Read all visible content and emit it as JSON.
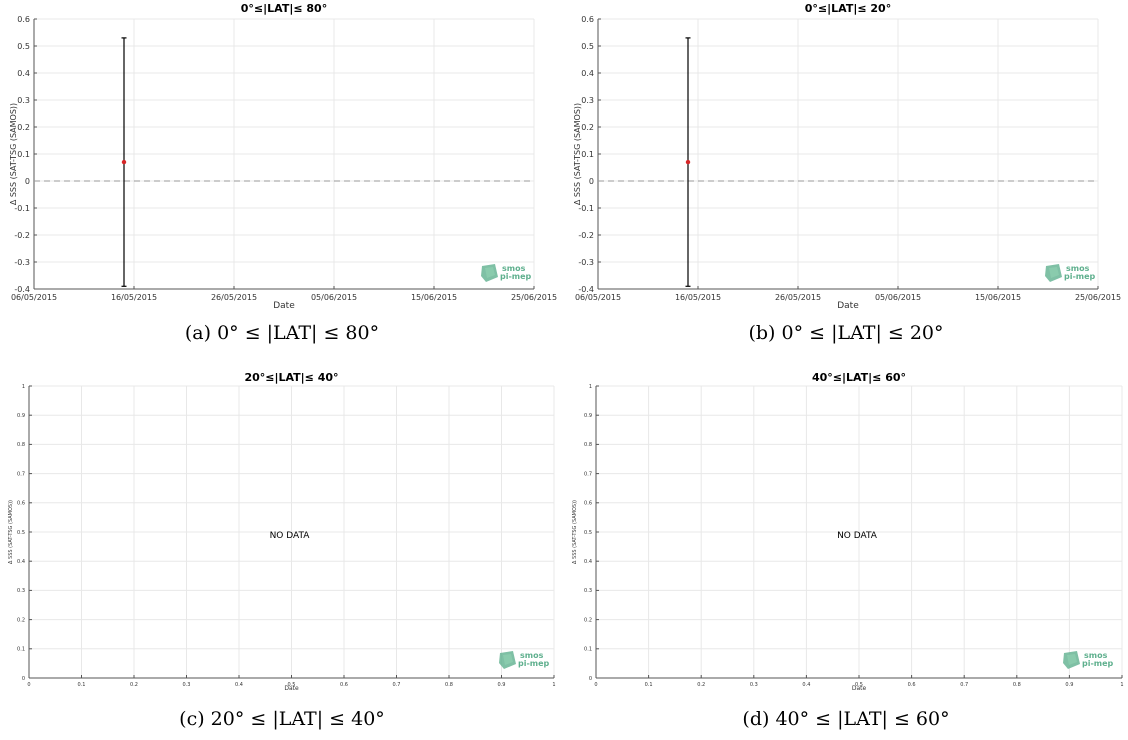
{
  "chart_data": [
    {
      "type": "scatter",
      "title": "0°≤|LAT|≤ 80°",
      "xlabel": "Date",
      "ylabel": "Δ SSS (SAT-TSG (SAMOS))",
      "xlim": [
        "06/05/2015",
        "25/06/2015"
      ],
      "xticks": [
        "06/05/2015",
        "16/05/2015",
        "26/05/2015",
        "05/06/2015",
        "15/06/2015",
        "25/06/2015"
      ],
      "ylim": [
        -0.4,
        0.6
      ],
      "yticks": [
        "-0.4",
        "-0.3",
        "-0.2",
        "-0.1",
        "0",
        "0.1",
        "0.2",
        "0.3",
        "0.4",
        "0.5",
        "0.6"
      ],
      "reference_line_y": 0,
      "points": [
        {
          "x": "15/05/2015",
          "y": 0.07,
          "err_low": -0.39,
          "err_high": 0.53
        }
      ],
      "grid": true,
      "no_data_text": "",
      "caption": "(a) 0° ≤ |LAT| ≤ 80°"
    },
    {
      "type": "scatter",
      "title": "0°≤|LAT|≤ 20°",
      "xlabel": "Date",
      "ylabel": "Δ SSS (SAT-TSG (SAMOS))",
      "xlim": [
        "06/05/2015",
        "25/06/2015"
      ],
      "xticks": [
        "06/05/2015",
        "16/05/2015",
        "26/05/2015",
        "05/06/2015",
        "15/06/2015",
        "25/06/2015"
      ],
      "ylim": [
        -0.4,
        0.6
      ],
      "yticks": [
        "-0.4",
        "-0.3",
        "-0.2",
        "-0.1",
        "0",
        "0.1",
        "0.2",
        "0.3",
        "0.4",
        "0.5",
        "0.6"
      ],
      "reference_line_y": 0,
      "points": [
        {
          "x": "15/05/2015",
          "y": 0.07,
          "err_low": -0.39,
          "err_high": 0.53
        }
      ],
      "grid": true,
      "no_data_text": "",
      "caption": "(b) 0° ≤ |LAT| ≤ 20°"
    },
    {
      "type": "scatter",
      "title": "20°≤|LAT|≤ 40°",
      "xlabel": "Date",
      "ylabel": "Δ SSS (SAT-TSG (SAMOS))",
      "xlim": [
        0,
        1
      ],
      "xticks": [
        "0",
        "0.1",
        "0.2",
        "0.3",
        "0.4",
        "0.5",
        "0.6",
        "0.7",
        "0.8",
        "0.9",
        "1"
      ],
      "ylim": [
        0,
        1
      ],
      "yticks": [
        "0",
        "0.1",
        "0.2",
        "0.3",
        "0.4",
        "0.5",
        "0.6",
        "0.7",
        "0.8",
        "0.9",
        "1"
      ],
      "points": [],
      "grid": true,
      "no_data_text": "NO DATA",
      "caption": "(c) 20° ≤ |LAT| ≤ 40°"
    },
    {
      "type": "scatter",
      "title": "40°≤|LAT|≤ 60°",
      "xlabel": "Date",
      "ylabel": "Δ SSS (SAT-TSG (SAMOS))",
      "xlim": [
        0,
        1
      ],
      "xticks": [
        "0",
        "0.1",
        "0.2",
        "0.3",
        "0.4",
        "0.5",
        "0.6",
        "0.7",
        "0.8",
        "0.9",
        "1"
      ],
      "ylim": [
        0,
        1
      ],
      "yticks": [
        "0",
        "0.1",
        "0.2",
        "0.3",
        "0.4",
        "0.5",
        "0.6",
        "0.7",
        "0.8",
        "0.9",
        "1"
      ],
      "points": [],
      "grid": true,
      "no_data_text": "NO DATA",
      "caption": "(d) 40° ≤ |LAT| ≤ 60°"
    }
  ],
  "logo": {
    "line1": "smos",
    "line2": "pi-mep",
    "color": "#5fb08e",
    "icon": "smos-logo-icon"
  },
  "colors": {
    "point": "#d62728",
    "errorbar": "#000000",
    "grid": "#e8e8e8",
    "reference": "#999999"
  }
}
